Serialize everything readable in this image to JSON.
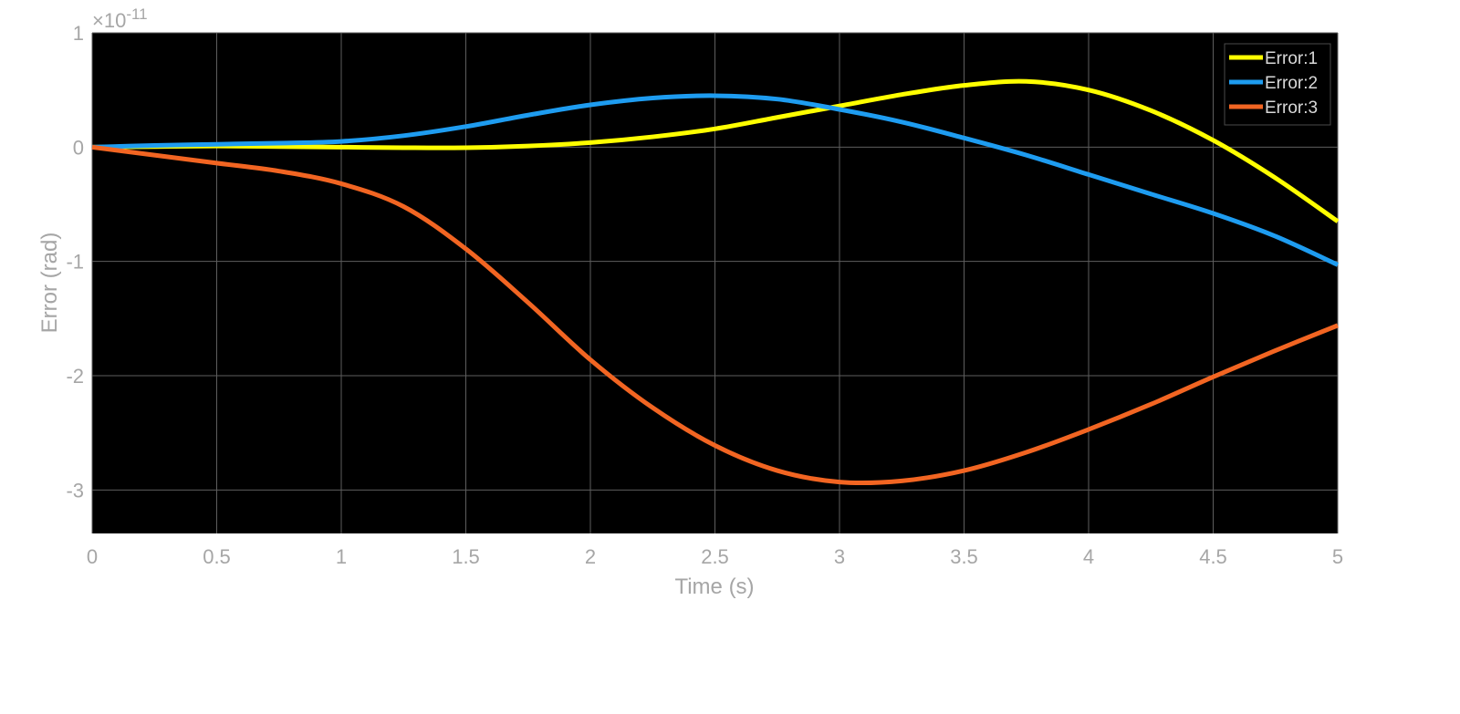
{
  "chart_data": {
    "type": "line",
    "xlabel": "Time (s)",
    "ylabel": "Error (rad)",
    "exponent_label": "×10",
    "exponent_power": "-11",
    "xlim": [
      0,
      5
    ],
    "ylim": [
      -3.38,
      1
    ],
    "grid": true,
    "legend_position": "top-right",
    "background": "#000000",
    "x_ticks": [
      0,
      0.5,
      1,
      1.5,
      2,
      2.5,
      3,
      3.5,
      4,
      4.5,
      5
    ],
    "x_tick_labels": [
      "0",
      "0.5",
      "1",
      "1.5",
      "2",
      "2.5",
      "3",
      "3.5",
      "4",
      "4.5",
      "5"
    ],
    "y_ticks": [
      1,
      0,
      -1,
      -2,
      -3
    ],
    "y_tick_labels": [
      "1",
      "0",
      "-1",
      "-2",
      "-3"
    ],
    "x": [
      0,
      0.25,
      0.5,
      0.75,
      1,
      1.25,
      1.5,
      1.75,
      2,
      2.25,
      2.5,
      2.75,
      3,
      3.25,
      3.5,
      3.75,
      4,
      4.25,
      4.5,
      4.75,
      5
    ],
    "series": [
      {
        "name": "Error:1",
        "color": "#ffff00",
        "values": [
          0,
          0.005,
          0.01,
          0.005,
          0,
          -0.005,
          -0.005,
          0.01,
          0.04,
          0.09,
          0.16,
          0.26,
          0.36,
          0.46,
          0.54,
          0.575,
          0.5,
          0.32,
          0.06,
          -0.27,
          -0.65
        ]
      },
      {
        "name": "Error:2",
        "color": "#1e9cf0",
        "values": [
          0,
          0.015,
          0.025,
          0.035,
          0.05,
          0.1,
          0.18,
          0.28,
          0.37,
          0.43,
          0.45,
          0.42,
          0.33,
          0.22,
          0.08,
          -0.07,
          -0.24,
          -0.41,
          -0.58,
          -0.78,
          -1.03
        ]
      },
      {
        "name": "Error:3",
        "color": "#f26522",
        "values": [
          0,
          -0.07,
          -0.14,
          -0.21,
          -0.32,
          -0.52,
          -0.89,
          -1.36,
          -1.86,
          -2.28,
          -2.61,
          -2.83,
          -2.93,
          -2.92,
          -2.83,
          -2.67,
          -2.47,
          -2.25,
          -2.01,
          -1.78,
          -1.56
        ]
      }
    ]
  }
}
